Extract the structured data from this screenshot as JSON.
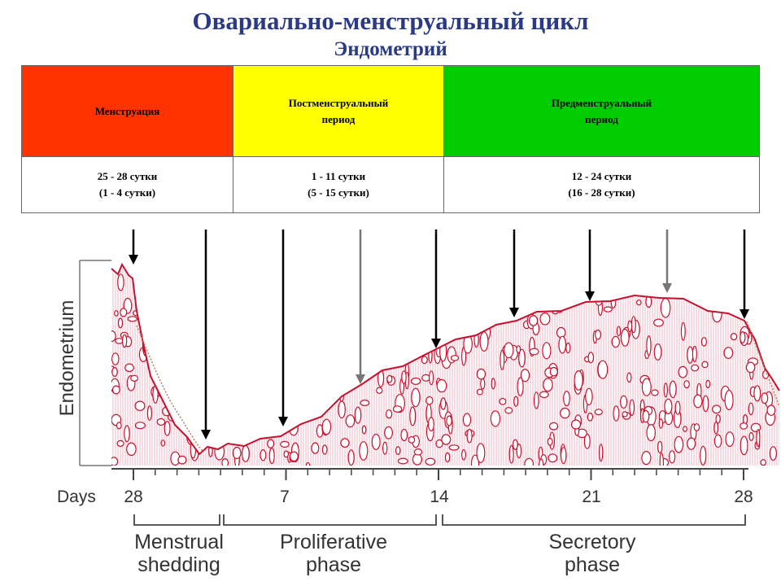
{
  "title": "Овариально-менструальный цикл",
  "subtitle": "Эндометрий",
  "table": {
    "phases": [
      {
        "name": "Менструация",
        "days": "25 - 28 сутки\n(1 - 4 сутки)",
        "color": "#ff3300"
      },
      {
        "name": "Постменструальный\nпериод",
        "days": "1 - 11 сутки\n(5 - 15 сутки)",
        "color": "#ffff00"
      },
      {
        "name": "Предменструальный\nпериод",
        "days": "12 - 24 сутки\n(16 - 28 сутки)",
        "color": "#00cc00"
      }
    ]
  },
  "diagram": {
    "y_axis_label": "Endometrium",
    "x_axis_label": "Days",
    "day_ticks": [
      "28",
      "7",
      "14",
      "21",
      "28"
    ],
    "phase_labels": [
      {
        "line1": "Menstrual",
        "line2": "shedding"
      },
      {
        "line1": "Proliferative",
        "line2": "phase"
      },
      {
        "line1": "Secretory",
        "line2": "phase"
      }
    ],
    "tissue_color": "#c8102e",
    "tissue_fill": "#f7d3dc"
  }
}
